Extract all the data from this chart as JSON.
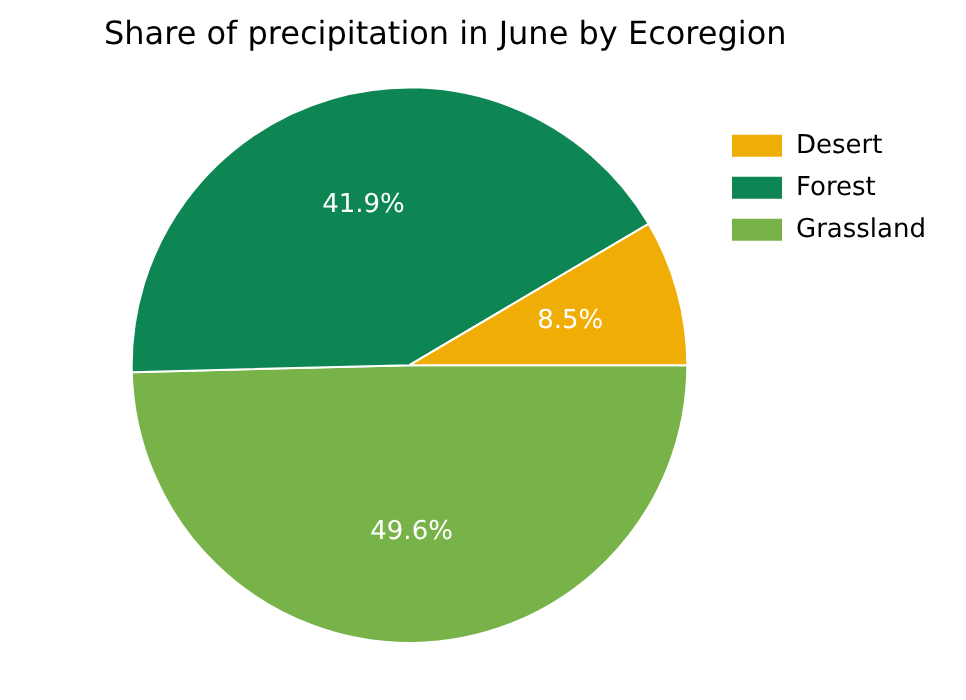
{
  "chart_data": {
    "type": "pie",
    "title": "Share of precipitation in June by Ecoregion",
    "categories": [
      "Desert",
      "Forest",
      "Grassland"
    ],
    "values": [
      8.5,
      41.9,
      49.6
    ],
    "colors": [
      "#f0ad05",
      "#0e8654",
      "#78b34a"
    ],
    "value_labels": [
      "8.5%",
      "41.9%",
      "49.6%"
    ],
    "legend": "top right"
  }
}
